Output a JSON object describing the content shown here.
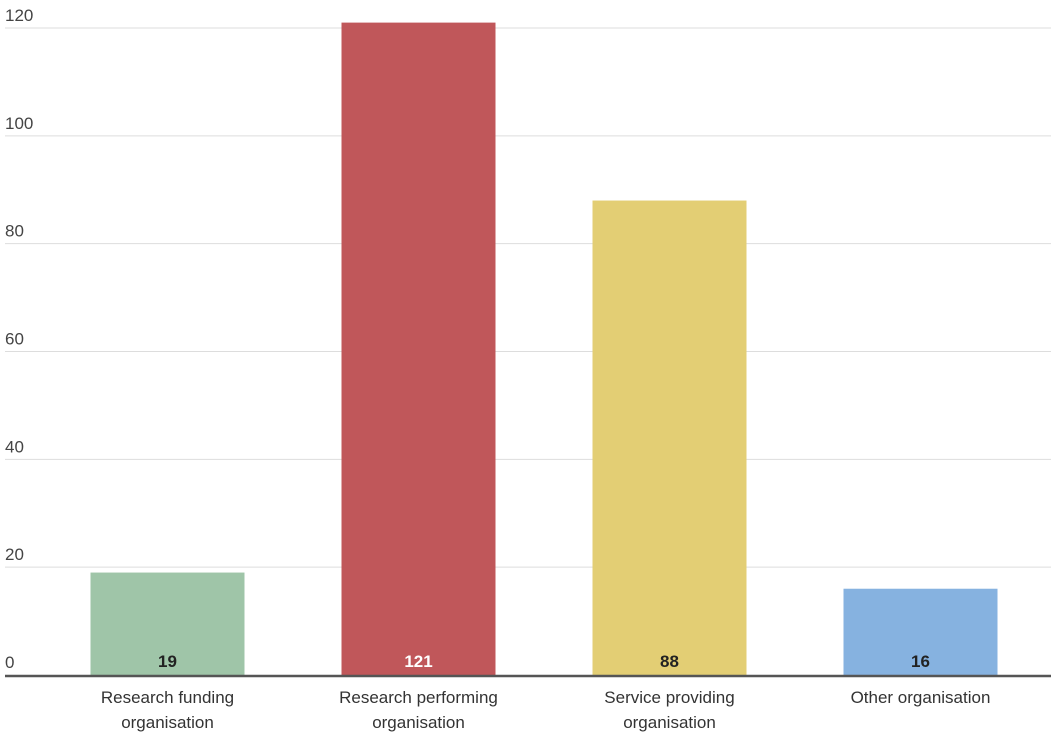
{
  "chart_data": {
    "type": "bar",
    "categories": [
      [
        "Research funding",
        "organisation"
      ],
      [
        "Research performing",
        "organisation"
      ],
      [
        "Service providing",
        "organisation"
      ],
      [
        "Other organisation"
      ]
    ],
    "values": [
      19,
      121,
      88,
      16
    ],
    "value_labels": [
      "19",
      "121",
      "88",
      "16"
    ],
    "colors": [
      "#9fc5a8",
      "#c0575a",
      "#e3ce74",
      "#86b2e0"
    ],
    "value_label_colors": [
      "#222222",
      "#ffffff",
      "#222222",
      "#222222"
    ],
    "y_ticks": [
      "0",
      "20",
      "40",
      "60",
      "80",
      "100",
      "120"
    ],
    "ylim": [
      0,
      120
    ],
    "grid": true,
    "legend": "none",
    "title": "",
    "xlabel": "",
    "ylabel": ""
  }
}
